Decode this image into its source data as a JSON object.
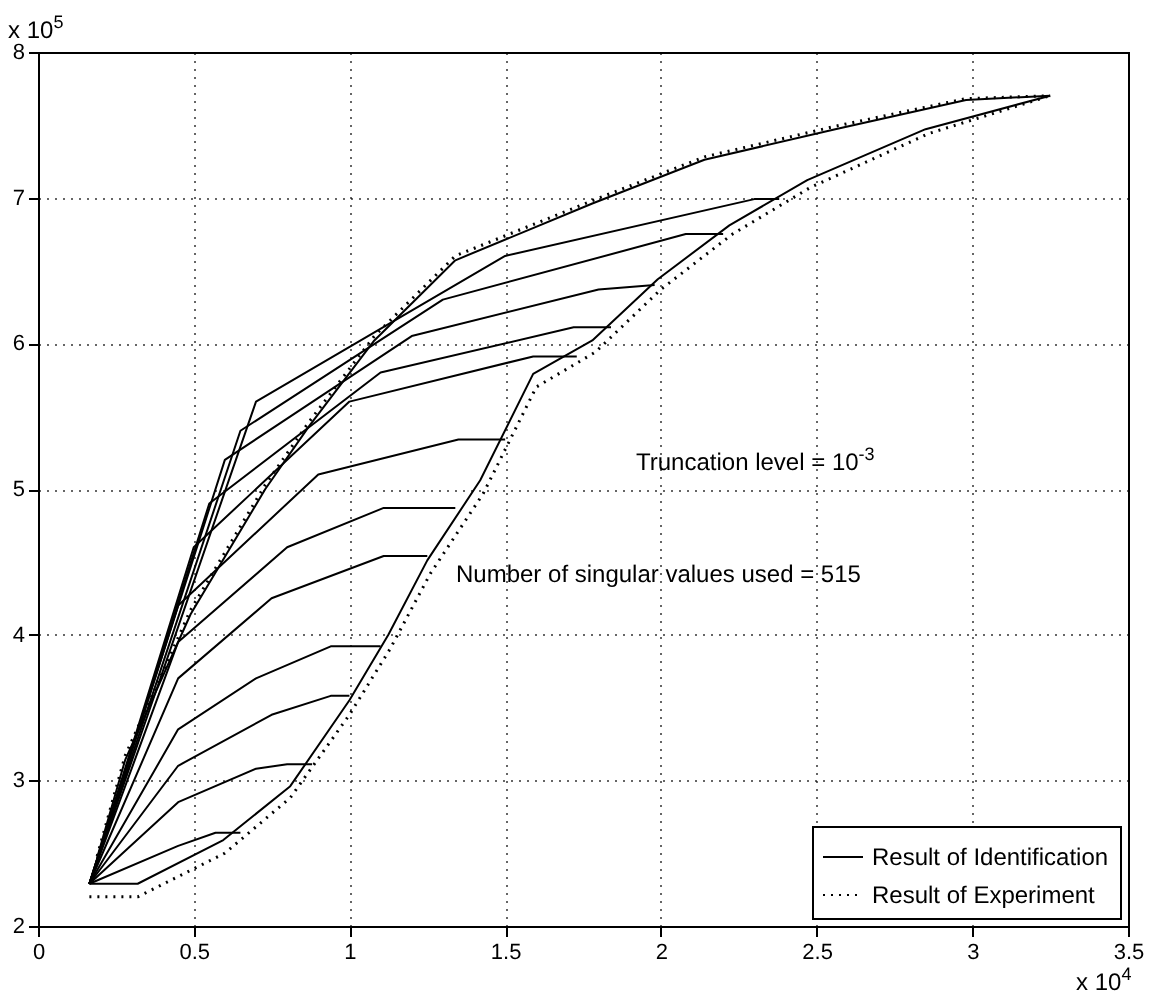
{
  "chart_data": {
    "type": "line",
    "xlim": [
      0,
      3.5
    ],
    "ylim": [
      2,
      8
    ],
    "xticks": [
      0,
      0.5,
      1,
      1.5,
      2,
      2.5,
      3,
      3.5
    ],
    "yticks": [
      2,
      3,
      4,
      5,
      6,
      7,
      8
    ],
    "grid": true,
    "legend": "bottom right",
    "annotations": [
      "x 10$^{5}$",
      "x 10$^{4}$",
      "Truncation level = 10$^{-3}$",
      "Number of singular values used = 515"
    ],
    "series": [
      {
        "name": "Result of Identification",
        "color": "#000000",
        "line_style": "solid",
        "x": [
          0.165,
          0.32,
          0.595,
          0.81,
          1.0,
          1.125,
          1.25,
          1.42,
          1.59,
          1.78,
          1.99,
          2.22,
          2.47,
          2.85,
          3.25
        ],
        "values": [
          2.29,
          2.29,
          2.59,
          2.96,
          3.55,
          4.0,
          4.51,
          5.06,
          5.79,
          6.02,
          6.44,
          6.81,
          7.12,
          7.47,
          7.7
        ]
      },
      {
        "color": "#000000",
        "line_style": "solid",
        "x": [
          0.19,
          0.28,
          0.49,
          0.73,
          0.87,
          1.08,
          1.34,
          1.78,
          2.14,
          2.56,
          2.98,
          3.25
        ],
        "values": [
          2.47,
          3.14,
          4.14,
          5.0,
          5.43,
          6.02,
          6.57,
          6.96,
          7.26,
          7.47,
          7.67,
          7.7
        ]
      },
      {
        "color": "#000000",
        "line_style": "solid",
        "x": [
          0.165,
          0.45,
          0.57,
          0.65
        ],
        "values": [
          2.29,
          2.55,
          2.64,
          2.64
        ]
      },
      {
        "color": "#000000",
        "line_style": "solid",
        "x": [
          0.165,
          0.45,
          0.7,
          0.8,
          0.88
        ],
        "values": [
          2.29,
          2.85,
          3.08,
          3.11,
          3.11
        ]
      },
      {
        "color": "#000000",
        "line_style": "solid",
        "x": [
          0.165,
          0.45,
          0.75,
          0.94,
          1.0
        ],
        "values": [
          2.29,
          3.1,
          3.45,
          3.58,
          3.58
        ]
      },
      {
        "color": "#000000",
        "line_style": "solid",
        "x": [
          0.165,
          0.45,
          0.7,
          0.94,
          1.1
        ],
        "values": [
          2.29,
          3.35,
          3.7,
          3.92,
          3.92
        ]
      },
      {
        "color": "#000000",
        "line_style": "solid",
        "x": [
          0.165,
          0.45,
          0.75,
          1.11,
          1.25
        ],
        "values": [
          2.29,
          3.7,
          4.25,
          4.54,
          4.54
        ]
      },
      {
        "color": "#000000",
        "line_style": "solid",
        "x": [
          0.165,
          0.45,
          0.8,
          1.11,
          1.34
        ],
        "values": [
          2.29,
          3.95,
          4.6,
          4.87,
          4.87
        ]
      },
      {
        "color": "#000000",
        "line_style": "solid",
        "x": [
          0.165,
          0.45,
          0.9,
          1.35,
          1.5
        ],
        "values": [
          2.29,
          4.2,
          5.1,
          5.34,
          5.34
        ]
      },
      {
        "color": "#000000",
        "line_style": "solid",
        "x": [
          0.165,
          0.5,
          1.0,
          1.59,
          1.73
        ],
        "values": [
          2.29,
          4.6,
          5.6,
          5.91,
          5.91
        ]
      },
      {
        "color": "#000000",
        "line_style": "solid",
        "x": [
          0.165,
          0.55,
          1.1,
          1.72,
          1.84
        ],
        "values": [
          2.29,
          4.9,
          5.8,
          6.11,
          6.11
        ]
      },
      {
        "color": "#000000",
        "line_style": "solid",
        "x": [
          0.165,
          0.6,
          1.2,
          1.8,
          1.98
        ],
        "values": [
          2.29,
          5.2,
          6.05,
          6.37,
          6.4
        ]
      },
      {
        "color": "#000000",
        "line_style": "solid",
        "x": [
          0.165,
          0.65,
          1.3,
          2.08,
          2.2
        ],
        "values": [
          2.29,
          5.4,
          6.3,
          6.75,
          6.75
        ]
      },
      {
        "color": "#000000",
        "line_style": "solid",
        "x": [
          0.165,
          0.7,
          1.5,
          2.3,
          2.38
        ],
        "values": [
          2.29,
          5.6,
          6.6,
          6.99,
          6.99
        ]
      },
      {
        "name": "Result of Experiment",
        "color": "#000000",
        "line_style": "dotted",
        "x": [
          0.165,
          0.32,
          0.6,
          0.81,
          1.0,
          1.13,
          1.26,
          1.43,
          1.6,
          1.79,
          2.0,
          2.23,
          2.48,
          2.86,
          3.25
        ],
        "values": [
          2.2,
          2.2,
          2.5,
          2.88,
          3.45,
          3.9,
          4.42,
          4.97,
          5.7,
          5.94,
          6.37,
          6.75,
          7.07,
          7.44,
          7.7
        ]
      },
      {
        "color": "#000000",
        "line_style": "dotted",
        "x": [
          0.19,
          0.28,
          0.49,
          0.73,
          0.87,
          1.08,
          1.34,
          1.78,
          2.14,
          2.56,
          2.98,
          3.25
        ],
        "values": [
          2.48,
          3.17,
          4.17,
          5.03,
          5.46,
          6.05,
          6.6,
          6.98,
          7.28,
          7.49,
          7.68,
          7.7
        ]
      }
    ]
  }
}
